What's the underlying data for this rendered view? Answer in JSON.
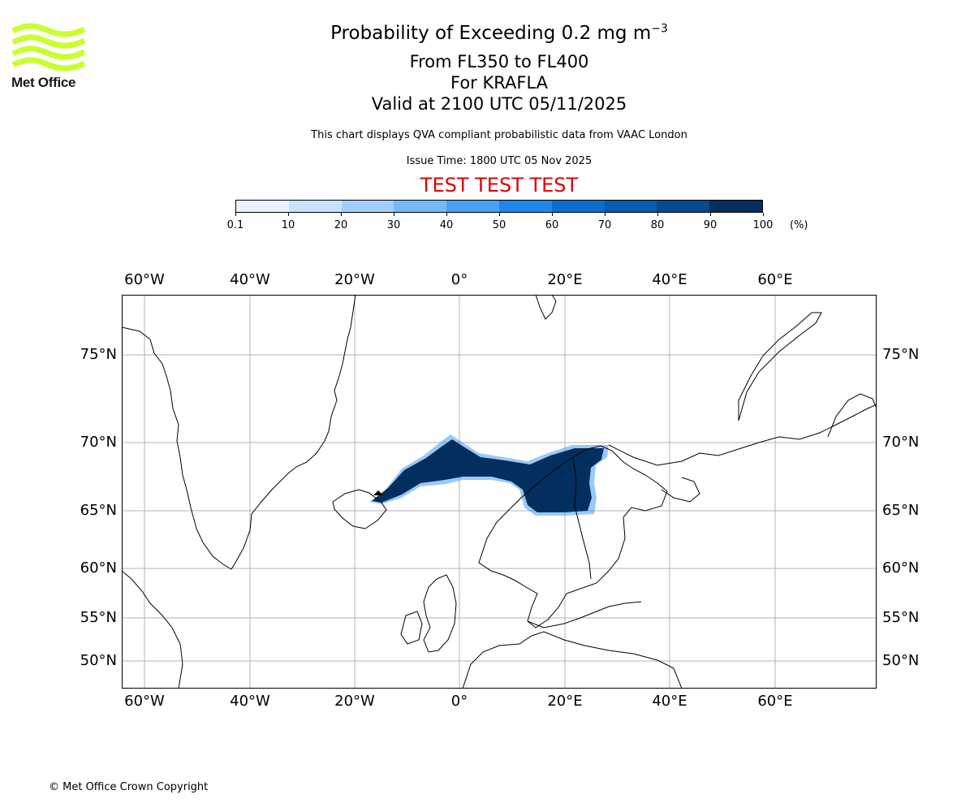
{
  "logo": {
    "text": "Met Office",
    "color": "#c8ff2e"
  },
  "title": {
    "main": "Probability of Exceeding 0.2 mg m",
    "exponent": "−3",
    "levels": "From FL350 to FL400",
    "volcano": "For KRAFLA",
    "valid": "Valid at 2100 UTC 05/11/2025"
  },
  "description": "This chart displays QVA compliant probabilistic data from VAAC London",
  "issue_time": "Issue Time: 1800 UTC 05 Nov 2025",
  "test_banner": "TEST TEST TEST",
  "colorbar": {
    "ticks": [
      "0.1",
      "10",
      "20",
      "30",
      "40",
      "50",
      "60",
      "70",
      "80",
      "90",
      "100"
    ],
    "unit": "(%)",
    "colors": [
      "#e8f3ff",
      "#c6e2fd",
      "#a2d0fb",
      "#77b9f7",
      "#4aa0f2",
      "#1f87eb",
      "#0a6ed1",
      "#075bb0",
      "#064a90",
      "#032f5e"
    ]
  },
  "map": {
    "lon_labels": [
      "60°W",
      "40°W",
      "20°W",
      "0°",
      "20°E",
      "40°E",
      "60°E"
    ],
    "lat_labels": [
      "75°N",
      "70°N",
      "65°N",
      "60°N",
      "55°N",
      "50°N"
    ],
    "plume_color": "#032f5e",
    "plume_edge_color": "#1f87eb"
  },
  "copyright": "© Met Office Crown Copyright"
}
